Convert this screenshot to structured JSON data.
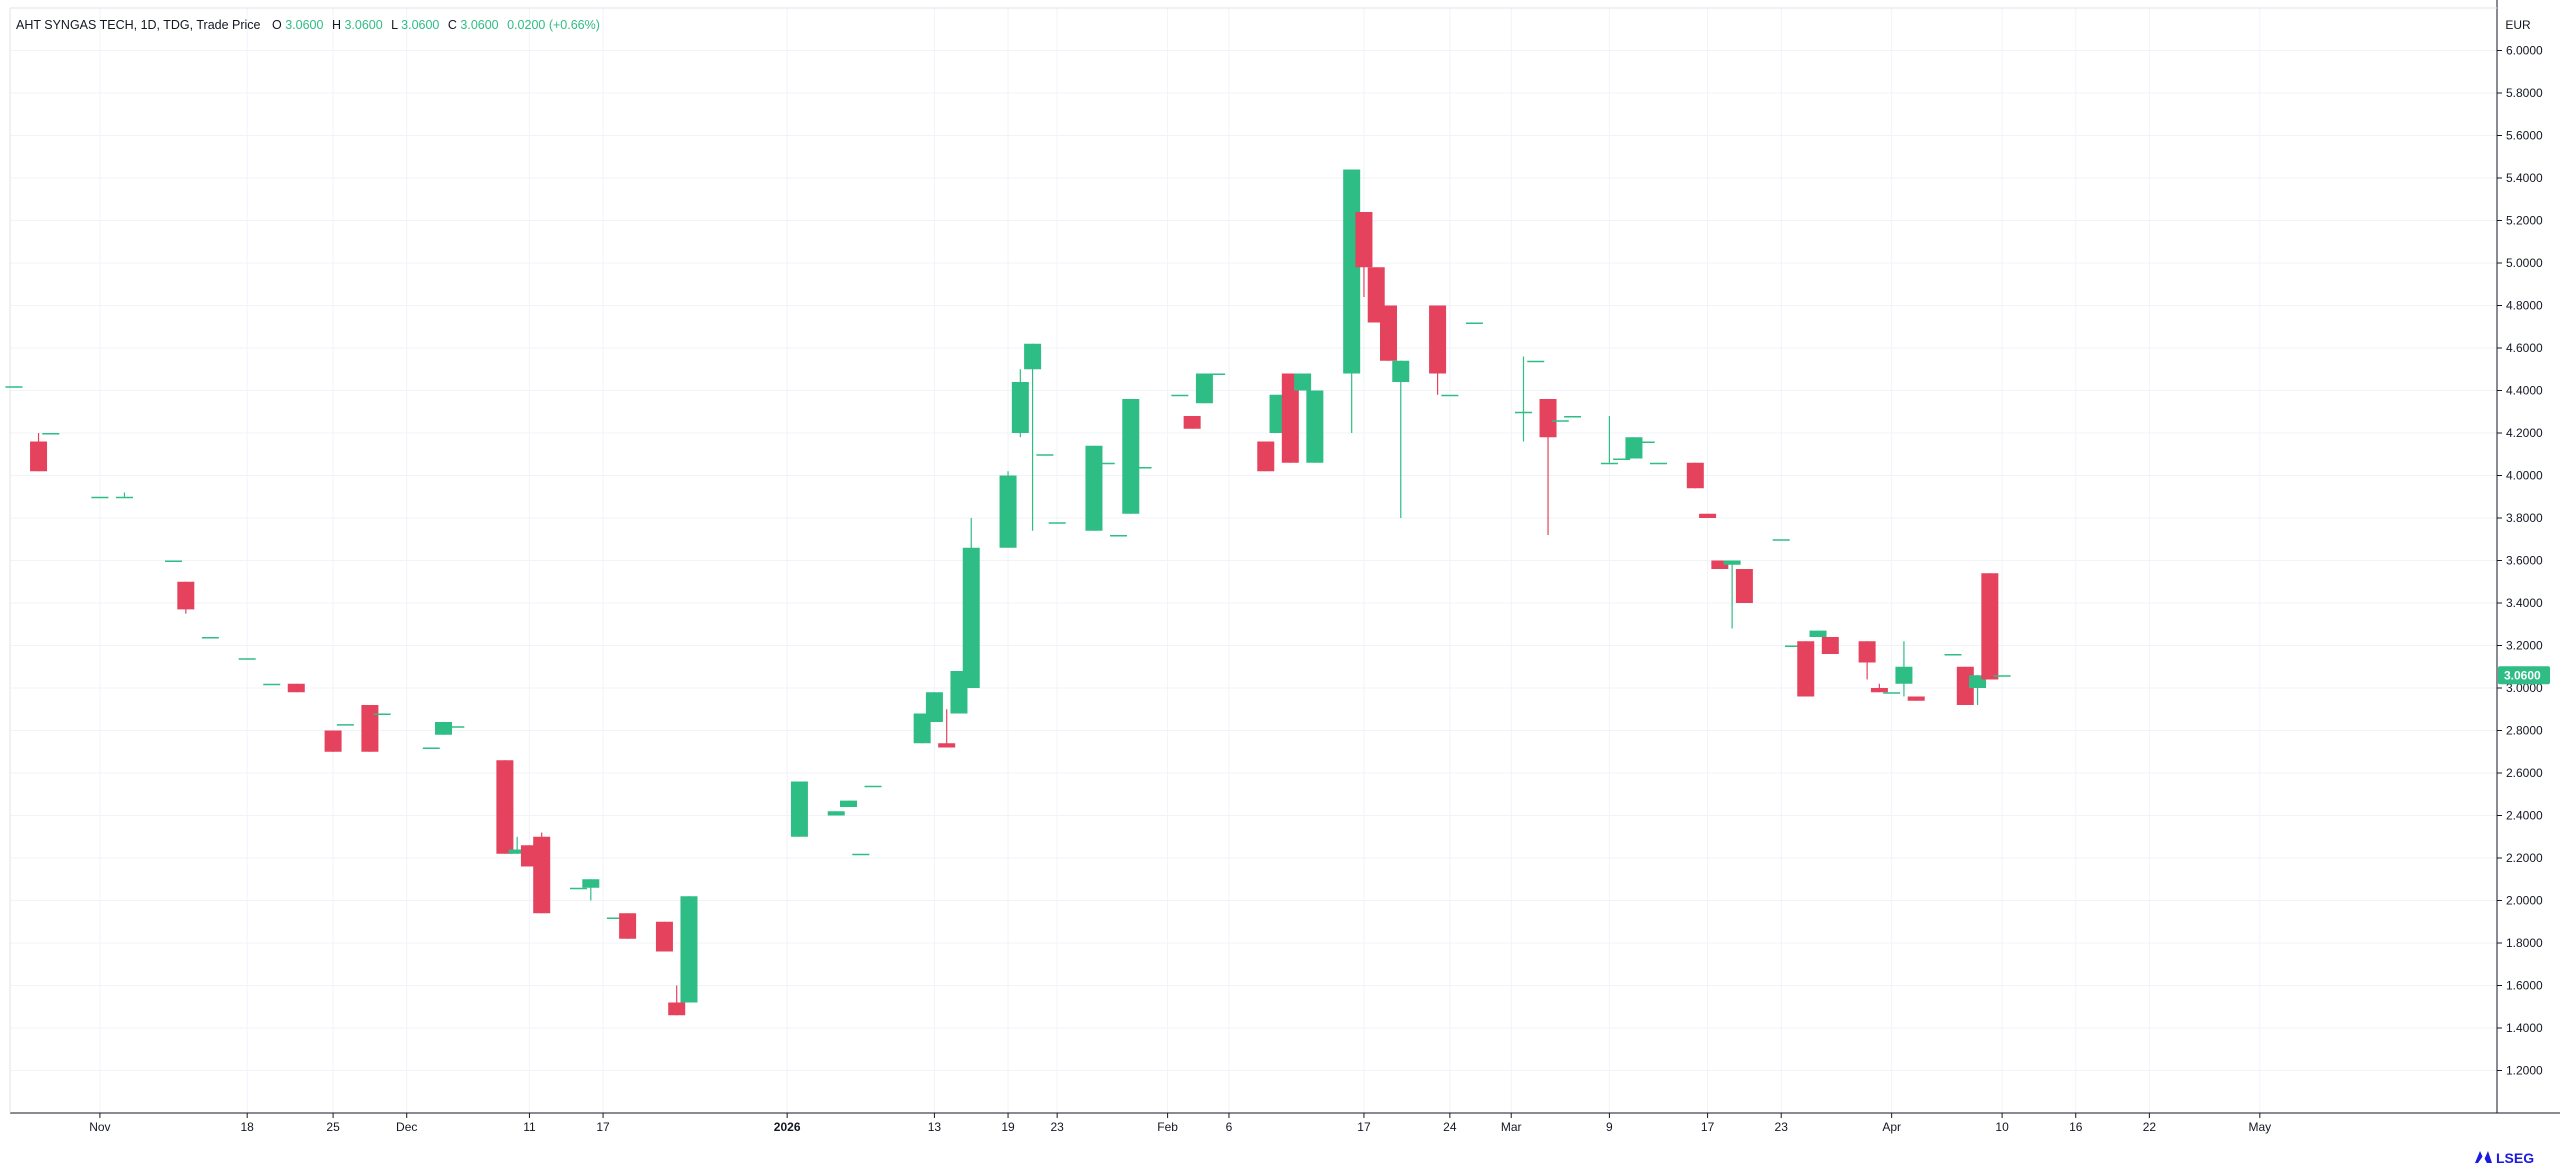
{
  "header": {
    "title": "AHT SYNGAS TECH, 1D, TDG, Trade Price",
    "o_label": "O",
    "o_value": "3.0600",
    "h_label": "H",
    "h_value": "3.0600",
    "l_label": "L",
    "l_value": "3.0600",
    "c_label": "C",
    "c_value": "3.0600",
    "change": "0.0200 (+0.66%)"
  },
  "currency": "EUR",
  "price_tag": "3.0600",
  "brand": "LSEG",
  "colors": {
    "up": "#2ebd85",
    "down": "#e5425d",
    "grid": "#f0f3fa",
    "axis_text": "#131722",
    "price_tag_bg": "#2ebd85"
  },
  "chart_data": {
    "type": "candlestick",
    "title": "",
    "ylim": [
      1.0,
      6.2
    ],
    "y_ticks": [
      "1.2000",
      "1.4000",
      "1.6000",
      "1.8000",
      "2.0000",
      "2.2000",
      "2.4000",
      "2.6000",
      "2.8000",
      "3.0000",
      "3.2000",
      "3.4000",
      "3.6000",
      "3.8000",
      "4.0000",
      "4.2000",
      "4.4000",
      "4.6000",
      "4.8000",
      "5.0000",
      "5.2000",
      "5.4000",
      "5.6000",
      "5.8000",
      "6.0000"
    ],
    "x_range_days": [
      -1,
      201
    ],
    "x_ticks": [
      {
        "label": "Nov",
        "day": 6
      },
      {
        "label": "18",
        "day": 18
      },
      {
        "label": "25",
        "day": 25
      },
      {
        "label": "Dec",
        "day": 31
      },
      {
        "label": "11",
        "day": 41
      },
      {
        "label": "17",
        "day": 47
      },
      {
        "label": "2026",
        "day": 62
      },
      {
        "label": "13",
        "day": 74
      },
      {
        "label": "19",
        "day": 80
      },
      {
        "label": "23",
        "day": 84
      },
      {
        "label": "Feb",
        "day": 93
      },
      {
        "label": "6",
        "day": 98
      },
      {
        "label": "17",
        "day": 109
      },
      {
        "label": "24",
        "day": 116
      },
      {
        "label": "Mar",
        "day": 121
      },
      {
        "label": "9",
        "day": 129
      },
      {
        "label": "17",
        "day": 137
      },
      {
        "label": "23",
        "day": 143
      },
      {
        "label": "Apr",
        "day": 152
      },
      {
        "label": "10",
        "day": 161
      },
      {
        "label": "16",
        "day": 167
      },
      {
        "label": "22",
        "day": 173
      },
      {
        "label": "May",
        "day": 182
      }
    ],
    "candles": [
      {
        "date": "2025-10-27",
        "day": -1,
        "o": 4.42,
        "h": 4.42,
        "l": 4.42,
        "c": 4.42
      },
      {
        "date": "2025-10-29",
        "day": 1,
        "o": 4.16,
        "h": 4.2,
        "l": 4.02,
        "c": 4.02
      },
      {
        "date": "2025-10-30",
        "day": 2,
        "o": 4.2,
        "h": 4.2,
        "l": 4.2,
        "c": 4.2
      },
      {
        "date": "2025-11-05",
        "day": 6,
        "o": 3.9,
        "h": 3.9,
        "l": 3.9,
        "c": 3.9
      },
      {
        "date": "2025-11-07",
        "day": 8,
        "o": 3.9,
        "h": 3.92,
        "l": 3.9,
        "c": 3.9
      },
      {
        "date": "2025-11-11",
        "day": 12,
        "o": 3.6,
        "h": 3.6,
        "l": 3.6,
        "c": 3.6
      },
      {
        "date": "2025-11-12",
        "day": 13,
        "o": 3.5,
        "h": 3.5,
        "l": 3.35,
        "c": 3.37
      },
      {
        "date": "2025-11-14",
        "day": 15,
        "o": 3.24,
        "h": 3.24,
        "l": 3.24,
        "c": 3.24
      },
      {
        "date": "2025-11-17",
        "day": 18,
        "o": 3.14,
        "h": 3.14,
        "l": 3.14,
        "c": 3.14
      },
      {
        "date": "2025-11-19",
        "day": 20,
        "o": 3.02,
        "h": 3.02,
        "l": 3.02,
        "c": 3.02
      },
      {
        "date": "2025-11-21",
        "day": 22,
        "o": 3.02,
        "h": 3.02,
        "l": 2.98,
        "c": 2.98
      },
      {
        "date": "2025-11-24",
        "day": 25,
        "o": 2.8,
        "h": 2.8,
        "l": 2.7,
        "c": 2.7
      },
      {
        "date": "2025-11-25",
        "day": 26,
        "o": 2.83,
        "h": 2.83,
        "l": 2.83,
        "c": 2.83
      },
      {
        "date": "2025-11-27",
        "day": 28,
        "o": 2.92,
        "h": 2.92,
        "l": 2.7,
        "c": 2.7
      },
      {
        "date": "2025-11-28",
        "day": 29,
        "o": 2.88,
        "h": 2.88,
        "l": 2.88,
        "c": 2.88
      },
      {
        "date": "2025-12-03",
        "day": 33,
        "o": 2.72,
        "h": 2.72,
        "l": 2.72,
        "c": 2.72
      },
      {
        "date": "2025-12-04",
        "day": 34,
        "o": 2.78,
        "h": 2.84,
        "l": 2.78,
        "c": 2.84
      },
      {
        "date": "2025-12-05",
        "day": 35,
        "o": 2.82,
        "h": 2.82,
        "l": 2.82,
        "c": 2.82
      },
      {
        "date": "2025-12-09",
        "day": 39,
        "o": 2.66,
        "h": 2.66,
        "l": 2.22,
        "c": 2.22
      },
      {
        "date": "2025-12-10",
        "day": 40,
        "o": 2.22,
        "h": 2.3,
        "l": 2.22,
        "c": 2.24
      },
      {
        "date": "2025-12-11",
        "day": 41,
        "o": 2.26,
        "h": 2.26,
        "l": 2.16,
        "c": 2.16
      },
      {
        "date": "2025-12-12",
        "day": 42,
        "o": 2.3,
        "h": 2.32,
        "l": 1.94,
        "c": 1.94
      },
      {
        "date": "2025-12-15",
        "day": 45,
        "o": 2.06,
        "h": 2.06,
        "l": 2.06,
        "c": 2.06
      },
      {
        "date": "2025-12-16",
        "day": 46,
        "o": 2.06,
        "h": 2.1,
        "l": 2.0,
        "c": 2.1
      },
      {
        "date": "2025-12-18",
        "day": 48,
        "o": 1.92,
        "h": 1.92,
        "l": 1.92,
        "c": 1.92
      },
      {
        "date": "2025-12-19",
        "day": 49,
        "o": 1.94,
        "h": 1.94,
        "l": 1.82,
        "c": 1.82
      },
      {
        "date": "2025-12-22",
        "day": 52,
        "o": 1.9,
        "h": 1.9,
        "l": 1.76,
        "c": 1.76
      },
      {
        "date": "2025-12-23",
        "day": 53,
        "o": 1.52,
        "h": 1.6,
        "l": 1.46,
        "c": 1.46
      },
      {
        "date": "2025-12-24",
        "day": 54,
        "o": 1.52,
        "h": 2.02,
        "l": 1.52,
        "c": 2.02
      },
      {
        "date": "2026-01-02",
        "day": 63,
        "o": 2.3,
        "h": 2.56,
        "l": 2.3,
        "c": 2.56
      },
      {
        "date": "2026-01-05",
        "day": 66,
        "o": 2.4,
        "h": 2.42,
        "l": 2.4,
        "c": 2.42
      },
      {
        "date": "2026-01-06",
        "day": 67,
        "o": 2.44,
        "h": 2.47,
        "l": 2.44,
        "c": 2.47
      },
      {
        "date": "2026-01-07",
        "day": 68,
        "o": 2.22,
        "h": 2.22,
        "l": 2.22,
        "c": 2.22
      },
      {
        "date": "2026-01-08",
        "day": 69,
        "o": 2.54,
        "h": 2.54,
        "l": 2.54,
        "c": 2.54
      },
      {
        "date": "2026-01-12",
        "day": 73,
        "o": 2.74,
        "h": 2.88,
        "l": 2.74,
        "c": 2.88
      },
      {
        "date": "2026-01-13",
        "day": 74,
        "o": 2.84,
        "h": 2.98,
        "l": 2.84,
        "c": 2.98
      },
      {
        "date": "2026-01-14",
        "day": 75,
        "o": 2.74,
        "h": 2.9,
        "l": 2.72,
        "c": 2.72
      },
      {
        "date": "2026-01-15",
        "day": 76,
        "o": 2.88,
        "h": 3.08,
        "l": 2.88,
        "c": 3.08
      },
      {
        "date": "2026-01-16",
        "day": 77,
        "o": 3.0,
        "h": 3.8,
        "l": 3.0,
        "c": 3.66
      },
      {
        "date": "2026-01-19",
        "day": 80,
        "o": 3.66,
        "h": 4.02,
        "l": 3.66,
        "c": 4.0
      },
      {
        "date": "2026-01-20",
        "day": 81,
        "o": 4.2,
        "h": 4.5,
        "l": 4.18,
        "c": 4.44
      },
      {
        "date": "2026-01-21",
        "day": 82,
        "o": 4.5,
        "h": 4.62,
        "l": 3.74,
        "c": 4.62
      },
      {
        "date": "2026-01-22",
        "day": 83,
        "o": 4.1,
        "h": 4.1,
        "l": 4.1,
        "c": 4.1
      },
      {
        "date": "2026-01-23",
        "day": 84,
        "o": 3.78,
        "h": 3.78,
        "l": 3.78,
        "c": 3.78
      },
      {
        "date": "2026-01-26",
        "day": 87,
        "o": 3.74,
        "h": 4.14,
        "l": 3.74,
        "c": 4.14
      },
      {
        "date": "2026-01-27",
        "day": 88,
        "o": 4.06,
        "h": 4.06,
        "l": 4.06,
        "c": 4.06
      },
      {
        "date": "2026-01-28",
        "day": 89,
        "o": 3.72,
        "h": 3.72,
        "l": 3.72,
        "c": 3.72
      },
      {
        "date": "2026-01-29",
        "day": 90,
        "o": 3.82,
        "h": 4.36,
        "l": 3.82,
        "c": 4.36
      },
      {
        "date": "2026-01-30",
        "day": 91,
        "o": 4.04,
        "h": 4.04,
        "l": 4.04,
        "c": 4.04
      },
      {
        "date": "2026-02-02",
        "day": 94,
        "o": 4.38,
        "h": 4.38,
        "l": 4.38,
        "c": 4.38
      },
      {
        "date": "2026-02-03",
        "day": 95,
        "o": 4.28,
        "h": 4.28,
        "l": 4.22,
        "c": 4.22
      },
      {
        "date": "2026-02-04",
        "day": 96,
        "o": 4.34,
        "h": 4.48,
        "l": 4.34,
        "c": 4.48
      },
      {
        "date": "2026-02-05",
        "day": 97,
        "o": 4.48,
        "h": 4.48,
        "l": 4.48,
        "c": 4.48
      },
      {
        "date": "2026-02-09",
        "day": 101,
        "o": 4.16,
        "h": 4.16,
        "l": 4.02,
        "c": 4.02
      },
      {
        "date": "2026-02-10",
        "day": 102,
        "o": 4.2,
        "h": 4.38,
        "l": 4.2,
        "c": 4.38
      },
      {
        "date": "2026-02-11",
        "day": 103,
        "o": 4.48,
        "h": 4.48,
        "l": 4.06,
        "c": 4.06
      },
      {
        "date": "2026-02-12",
        "day": 104,
        "o": 4.4,
        "h": 4.48,
        "l": 4.4,
        "c": 4.48
      },
      {
        "date": "2026-02-13",
        "day": 105,
        "o": 4.06,
        "h": 4.4,
        "l": 4.06,
        "c": 4.4
      },
      {
        "date": "2026-02-16",
        "day": 108,
        "o": 4.48,
        "h": 5.44,
        "l": 4.2,
        "c": 5.44
      },
      {
        "date": "2026-02-17",
        "day": 109,
        "o": 5.24,
        "h": 5.24,
        "l": 4.84,
        "c": 4.98
      },
      {
        "date": "2026-02-18",
        "day": 110,
        "o": 4.98,
        "h": 4.98,
        "l": 4.72,
        "c": 4.72
      },
      {
        "date": "2026-02-19",
        "day": 111,
        "o": 4.8,
        "h": 4.8,
        "l": 4.54,
        "c": 4.54
      },
      {
        "date": "2026-02-20",
        "day": 112,
        "o": 4.44,
        "h": 4.54,
        "l": 3.8,
        "c": 4.54
      },
      {
        "date": "2026-02-23",
        "day": 115,
        "o": 4.8,
        "h": 4.8,
        "l": 4.38,
        "c": 4.48
      },
      {
        "date": "2026-02-24",
        "day": 116,
        "o": 4.38,
        "h": 4.38,
        "l": 4.38,
        "c": 4.38
      },
      {
        "date": "2026-02-26",
        "day": 118,
        "o": 4.72,
        "h": 4.72,
        "l": 4.72,
        "c": 4.72
      },
      {
        "date": "2026-03-02",
        "day": 122,
        "o": 4.3,
        "h": 4.56,
        "l": 4.16,
        "c": 4.3
      },
      {
        "date": "2026-03-03",
        "day": 123,
        "o": 4.54,
        "h": 4.54,
        "l": 4.54,
        "c": 4.54
      },
      {
        "date": "2026-03-04",
        "day": 124,
        "o": 4.36,
        "h": 4.36,
        "l": 3.72,
        "c": 4.18
      },
      {
        "date": "2026-03-05",
        "day": 125,
        "o": 4.26,
        "h": 4.26,
        "l": 4.26,
        "c": 4.26
      },
      {
        "date": "2026-03-06",
        "day": 126,
        "o": 4.28,
        "h": 4.28,
        "l": 4.28,
        "c": 4.28
      },
      {
        "date": "2026-03-09",
        "day": 129,
        "o": 4.06,
        "h": 4.28,
        "l": 4.06,
        "c": 4.06
      },
      {
        "date": "2026-03-10",
        "day": 130,
        "o": 4.08,
        "h": 4.08,
        "l": 4.08,
        "c": 4.08
      },
      {
        "date": "2026-03-11",
        "day": 131,
        "o": 4.08,
        "h": 4.18,
        "l": 4.08,
        "c": 4.18
      },
      {
        "date": "2026-03-12",
        "day": 132,
        "o": 4.16,
        "h": 4.16,
        "l": 4.16,
        "c": 4.16
      },
      {
        "date": "2026-03-13",
        "day": 133,
        "o": 4.06,
        "h": 4.06,
        "l": 4.06,
        "c": 4.06
      },
      {
        "date": "2026-03-16",
        "day": 136,
        "o": 4.06,
        "h": 4.06,
        "l": 3.94,
        "c": 3.94
      },
      {
        "date": "2026-03-17",
        "day": 137,
        "o": 3.82,
        "h": 3.82,
        "l": 3.8,
        "c": 3.8
      },
      {
        "date": "2026-03-18",
        "day": 138,
        "o": 3.6,
        "h": 3.6,
        "l": 3.56,
        "c": 3.56
      },
      {
        "date": "2026-03-19",
        "day": 139,
        "o": 3.58,
        "h": 3.6,
        "l": 3.28,
        "c": 3.6
      },
      {
        "date": "2026-03-20",
        "day": 140,
        "o": 3.56,
        "h": 3.56,
        "l": 3.4,
        "c": 3.4
      },
      {
        "date": "2026-03-23",
        "day": 143,
        "o": 3.7,
        "h": 3.7,
        "l": 3.7,
        "c": 3.7
      },
      {
        "date": "2026-03-24",
        "day": 144,
        "o": 3.2,
        "h": 3.2,
        "l": 3.2,
        "c": 3.2
      },
      {
        "date": "2026-03-25",
        "day": 145,
        "o": 3.22,
        "h": 3.22,
        "l": 2.96,
        "c": 2.96
      },
      {
        "date": "2026-03-26",
        "day": 146,
        "o": 3.24,
        "h": 3.27,
        "l": 3.24,
        "c": 3.27
      },
      {
        "date": "2026-03-27",
        "day": 147,
        "o": 3.24,
        "h": 3.24,
        "l": 3.16,
        "c": 3.16
      },
      {
        "date": "2026-03-30",
        "day": 150,
        "o": 3.22,
        "h": 3.22,
        "l": 3.04,
        "c": 3.12
      },
      {
        "date": "2026-03-31",
        "day": 151,
        "o": 3.0,
        "h": 3.02,
        "l": 2.98,
        "c": 2.98
      },
      {
        "date": "2026-04-01",
        "day": 152,
        "o": 2.98,
        "h": 2.98,
        "l": 2.98,
        "c": 2.98
      },
      {
        "date": "2026-04-02",
        "day": 153,
        "o": 3.02,
        "h": 3.22,
        "l": 2.96,
        "c": 3.1
      },
      {
        "date": "2026-04-03",
        "day": 154,
        "o": 2.96,
        "h": 2.96,
        "l": 2.94,
        "c": 2.94
      },
      {
        "date": "2026-04-06",
        "day": 157,
        "o": 3.16,
        "h": 3.16,
        "l": 3.16,
        "c": 3.16
      },
      {
        "date": "2026-04-07",
        "day": 158,
        "o": 3.1,
        "h": 3.1,
        "l": 2.92,
        "c": 2.92
      },
      {
        "date": "2026-04-08",
        "day": 159,
        "o": 3.0,
        "h": 3.06,
        "l": 2.92,
        "c": 3.06
      },
      {
        "date": "2026-04-09",
        "day": 160,
        "o": 3.54,
        "h": 3.54,
        "l": 3.04,
        "c": 3.04
      },
      {
        "date": "2026-04-10",
        "day": 161,
        "o": 3.06,
        "h": 3.06,
        "l": 3.06,
        "c": 3.06
      }
    ]
  }
}
